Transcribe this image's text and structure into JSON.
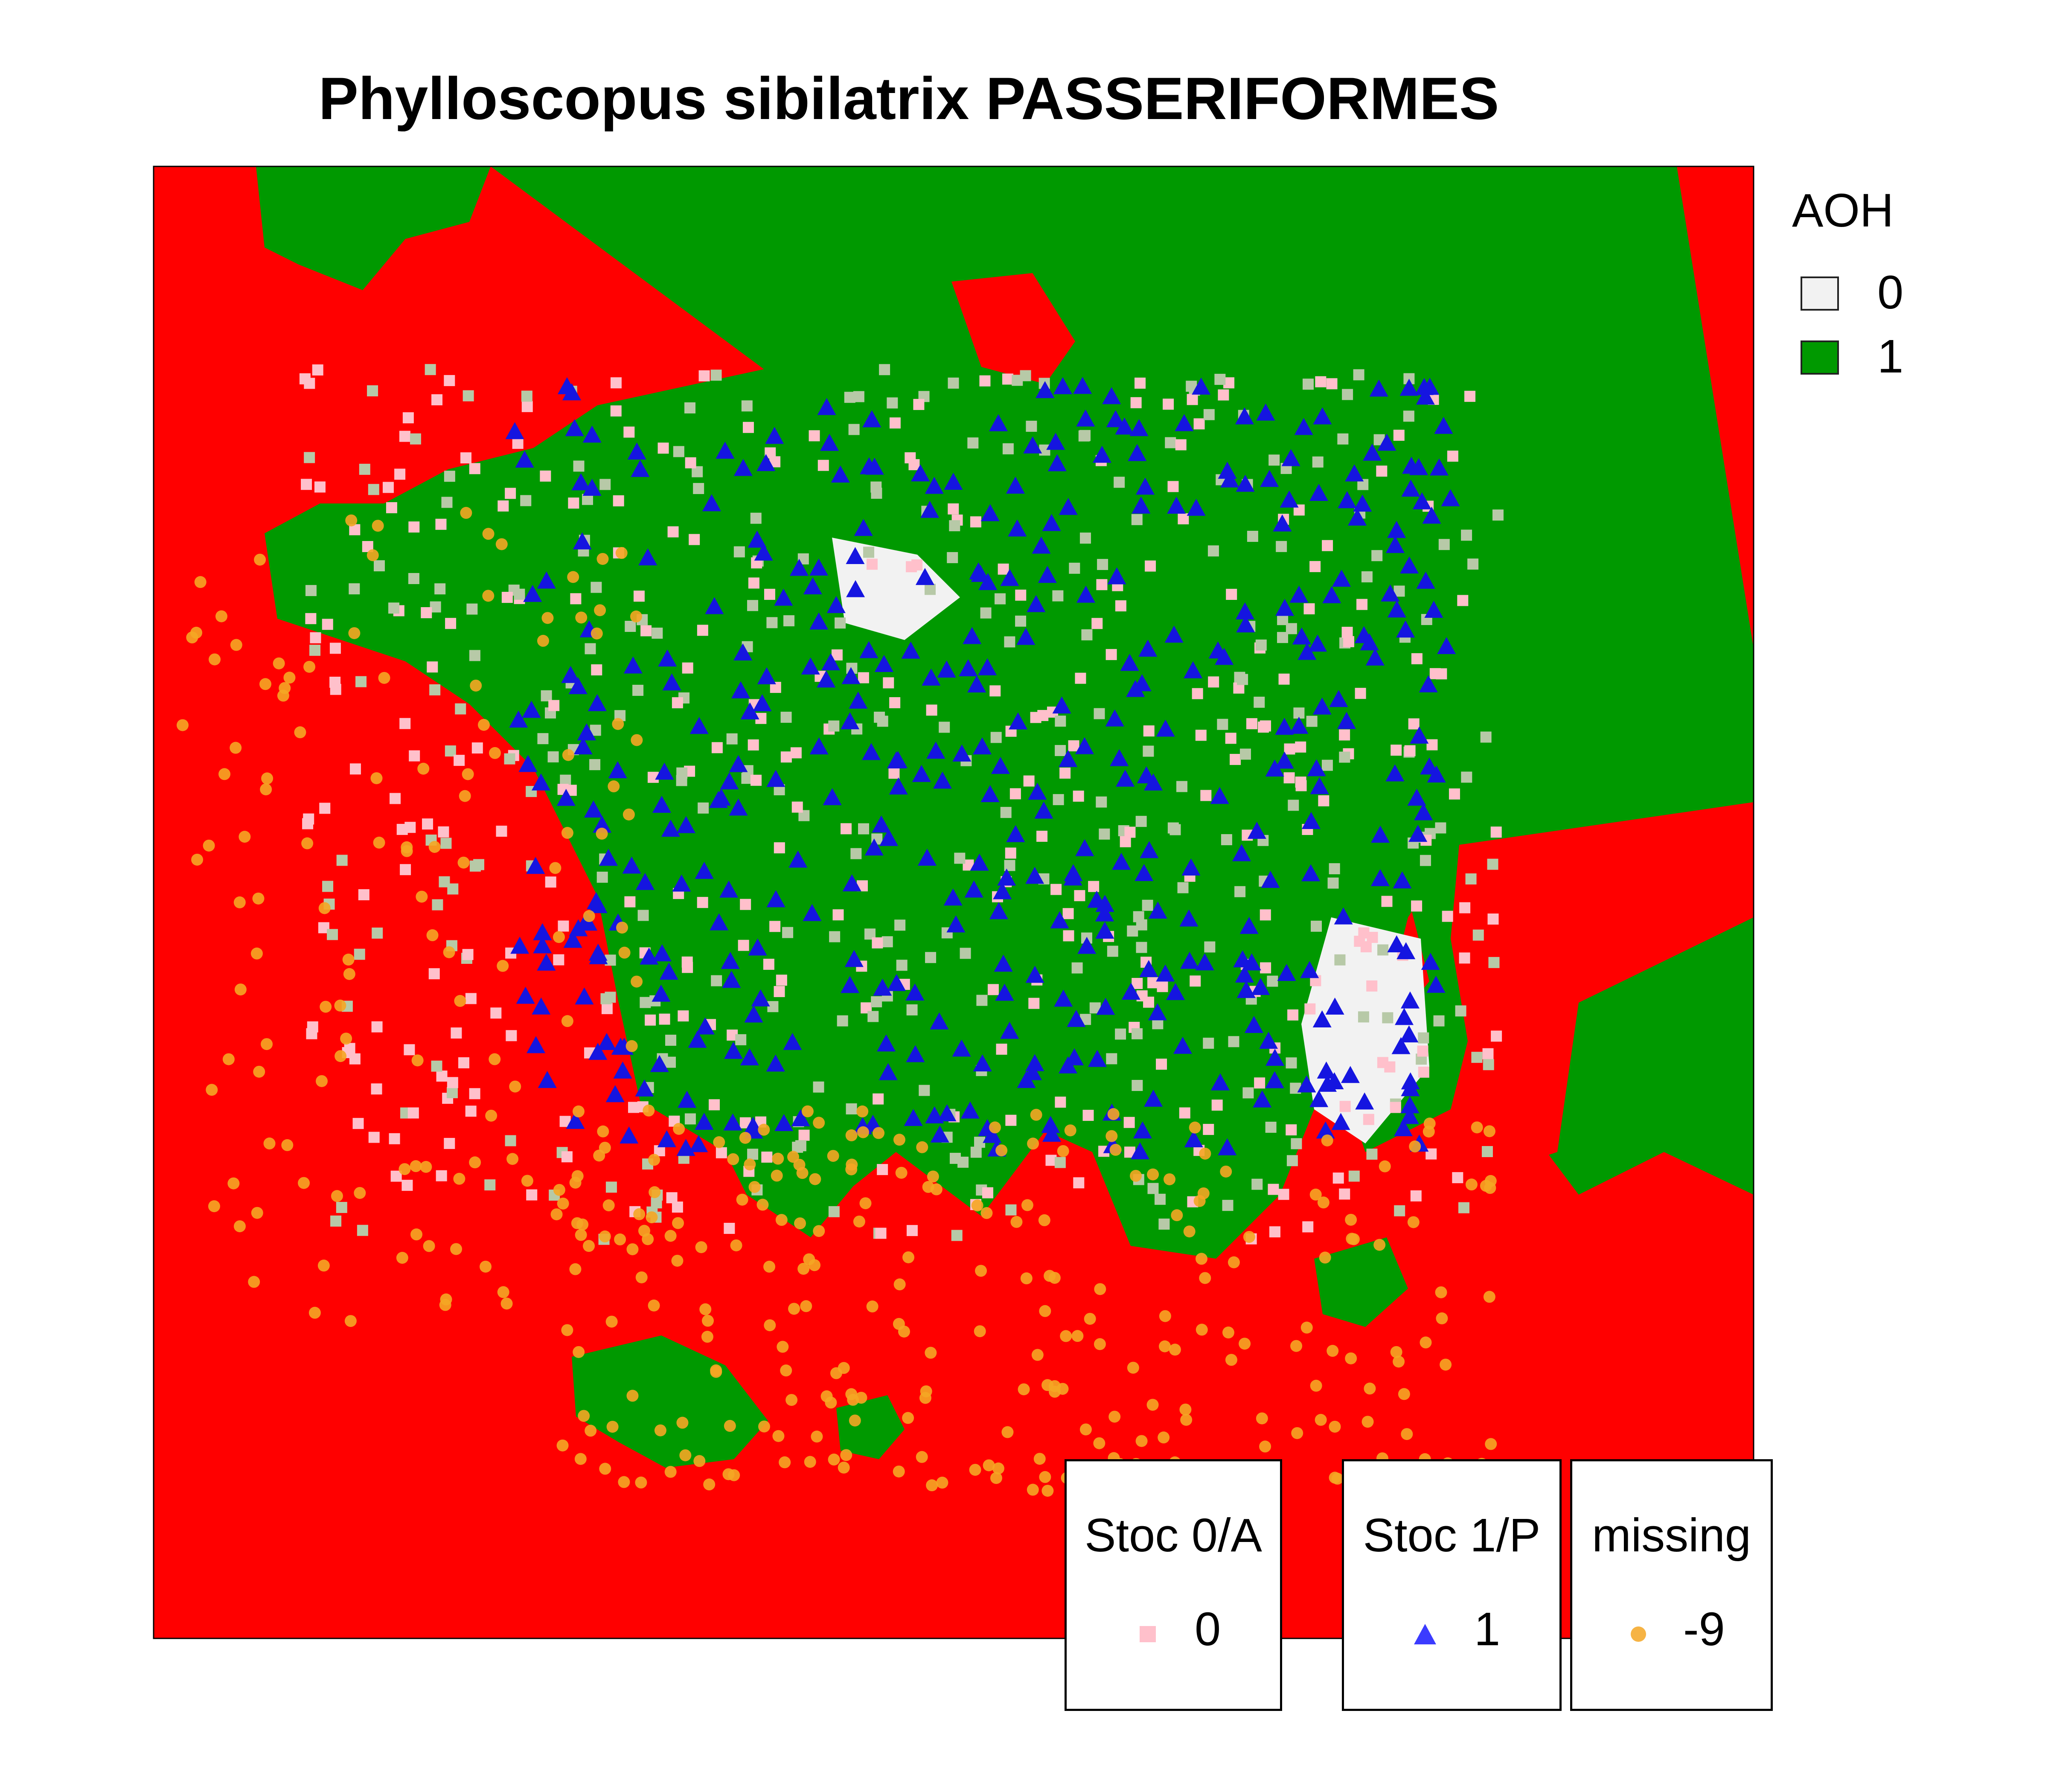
{
  "title": "Phylloscopus sibilatrix PASSERIFORMES",
  "aoh_legend": {
    "title": "AOH",
    "items": [
      {
        "label": "0",
        "color": "#f2f2f2"
      },
      {
        "label": "1",
        "color": "#009900"
      }
    ]
  },
  "background_color": "#ff0000",
  "point_legends": [
    {
      "title": "Stoc 0/A",
      "value": "0",
      "symbol": "square",
      "color": "#ffc0cb"
    },
    {
      "title": "Stoc 1/P",
      "value": "1",
      "symbol": "triangle",
      "color": "#3b3bff"
    },
    {
      "title": "missing",
      "value": "-9",
      "symbol": "circle",
      "color": "#f5a623"
    }
  ]
}
